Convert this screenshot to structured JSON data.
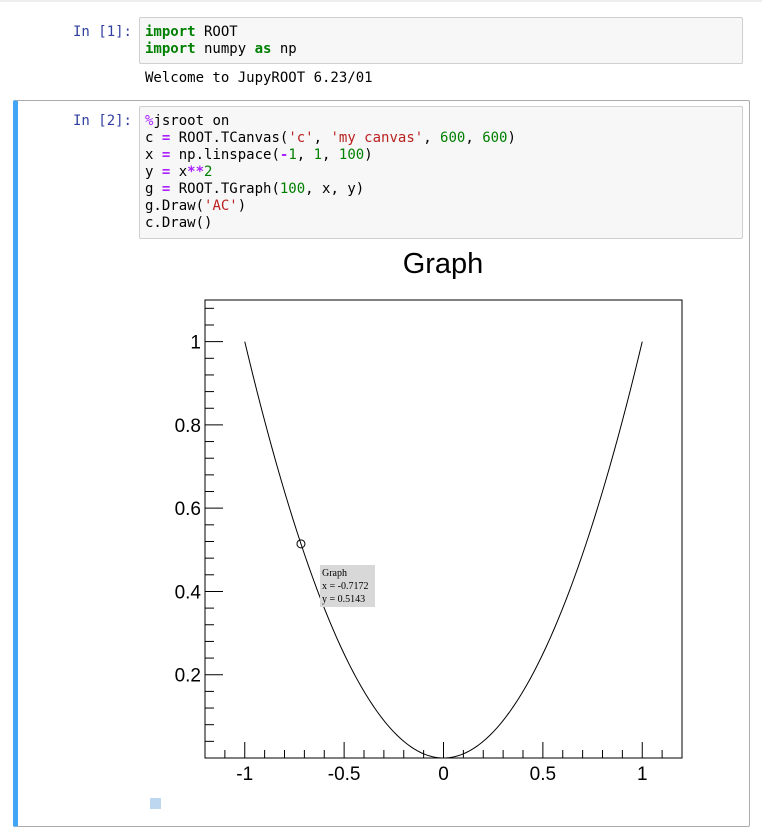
{
  "cells": [
    {
      "prompt": "In [1]:",
      "code": [
        [
          {
            "t": "import",
            "c": "kw"
          },
          {
            "t": " ROOT"
          }
        ],
        [
          {
            "t": "import",
            "c": "kw"
          },
          {
            "t": " numpy "
          },
          {
            "t": "as",
            "c": "kw"
          },
          {
            "t": " np"
          }
        ]
      ],
      "output": "Welcome to JupyROOT 6.23/01"
    },
    {
      "prompt": "In [2]:",
      "code": [
        [
          {
            "t": "%",
            "c": "magic"
          },
          {
            "t": "jsroot on"
          }
        ],
        [
          {
            "t": "c "
          },
          {
            "t": "=",
            "c": "op"
          },
          {
            "t": " ROOT.TCanvas("
          },
          {
            "t": "'c'",
            "c": "str"
          },
          {
            "t": ", "
          },
          {
            "t": "'my canvas'",
            "c": "str"
          },
          {
            "t": ", "
          },
          {
            "t": "600",
            "c": "num"
          },
          {
            "t": ", "
          },
          {
            "t": "600",
            "c": "num"
          },
          {
            "t": ")"
          }
        ],
        [
          {
            "t": "x "
          },
          {
            "t": "=",
            "c": "op"
          },
          {
            "t": " np.linspace("
          },
          {
            "t": "-",
            "c": "op"
          },
          {
            "t": "1",
            "c": "num"
          },
          {
            "t": ", "
          },
          {
            "t": "1",
            "c": "num"
          },
          {
            "t": ", "
          },
          {
            "t": "100",
            "c": "num"
          },
          {
            "t": ")"
          }
        ],
        [
          {
            "t": "y "
          },
          {
            "t": "=",
            "c": "op"
          },
          {
            "t": " x"
          },
          {
            "t": "**",
            "c": "op"
          },
          {
            "t": "2",
            "c": "num"
          }
        ],
        [
          {
            "t": "g "
          },
          {
            "t": "=",
            "c": "op"
          },
          {
            "t": " ROOT.TGraph("
          },
          {
            "t": "100",
            "c": "num"
          },
          {
            "t": ", x, y)"
          }
        ],
        [
          {
            "t": "g.Draw("
          },
          {
            "t": "'AC'",
            "c": "str"
          },
          {
            "t": ")"
          }
        ],
        [
          {
            "t": "c.Draw()"
          }
        ]
      ]
    }
  ],
  "chart_data": {
    "type": "line",
    "title": "Graph",
    "xlabel": "",
    "ylabel": "",
    "xlim": [
      -1.2,
      1.2
    ],
    "ylim": [
      0,
      1.1
    ],
    "xticks": [
      -1,
      -0.5,
      0,
      0.5,
      1
    ],
    "xtick_labels": [
      "-1",
      "-0.5",
      "0",
      "0.5",
      "1"
    ],
    "yticks": [
      0.2,
      0.4,
      0.6,
      0.8,
      1
    ],
    "ytick_labels": [
      "0.2",
      "0.4",
      "0.6",
      "0.8",
      "1"
    ],
    "series": [
      {
        "function": "x^2",
        "x_range": [
          -1,
          1
        ],
        "n_points": 100,
        "color": "#000000"
      }
    ],
    "tooltip": {
      "title": "Graph",
      "x_text": "x = -0.7172",
      "y_text": "y = 0.5143",
      "point": [
        -0.7172,
        0.5143
      ]
    }
  }
}
